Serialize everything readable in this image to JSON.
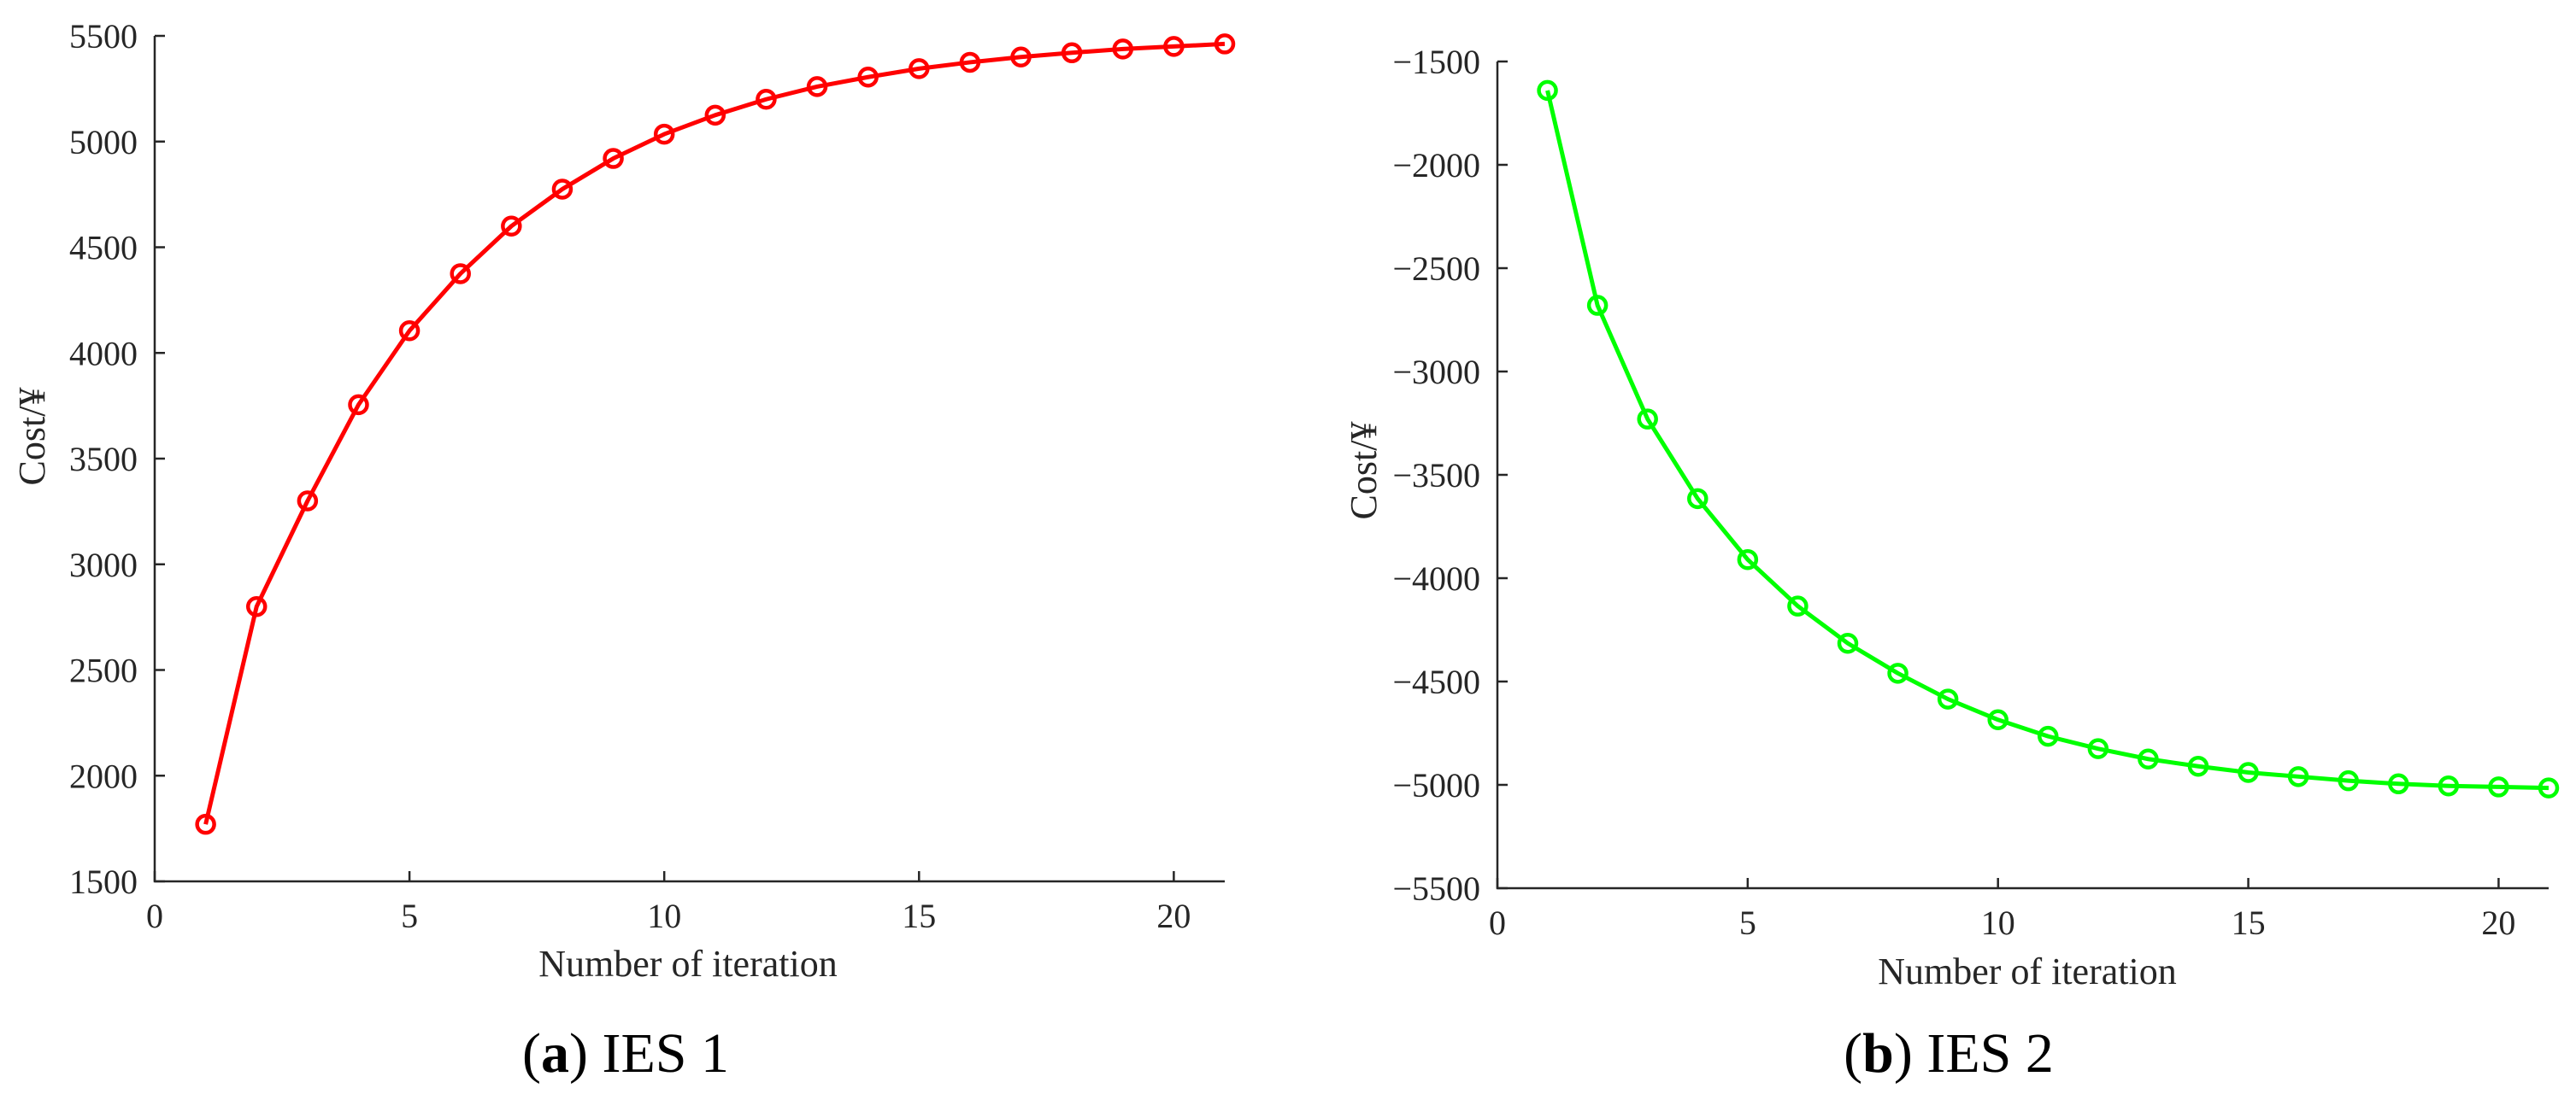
{
  "chart_data": [
    {
      "type": "line",
      "caption_letter": "a",
      "caption_text": "IES 1",
      "xlabel": "Number of iteration",
      "ylabel": "Cost/¥",
      "xlim": [
        0,
        21
      ],
      "ylim": [
        1500,
        5500
      ],
      "xticks": [
        0,
        5,
        10,
        15,
        20
      ],
      "yticks": [
        1500,
        2000,
        2500,
        3000,
        3500,
        4000,
        4500,
        5000,
        5500
      ],
      "grid": false,
      "color": "#ff0000",
      "marker": "circle",
      "series": [
        {
          "x": [
            1,
            2,
            3,
            4,
            5,
            6,
            7,
            8,
            9,
            10,
            11,
            12,
            13,
            14,
            15,
            16,
            17,
            18,
            19,
            20,
            21
          ],
          "values": [
            1770,
            2800,
            3300,
            3755,
            4105,
            4375,
            4600,
            4775,
            4920,
            5035,
            5125,
            5200,
            5260,
            5305,
            5345,
            5375,
            5400,
            5420,
            5438,
            5450,
            5462
          ]
        }
      ]
    },
    {
      "type": "line",
      "caption_letter": "b",
      "caption_text": "IES 2",
      "xlabel": "Number of iteration",
      "ylabel": "Cost/¥",
      "xlim": [
        0,
        21
      ],
      "ylim": [
        -5500,
        -1500
      ],
      "xticks": [
        0,
        5,
        10,
        15,
        20
      ],
      "yticks": [
        -5500,
        -5000,
        -4500,
        -4000,
        -3500,
        -3000,
        -2500,
        -2000,
        -1500
      ],
      "ytick_labels": [
        "−5500",
        "−5000",
        "−4500",
        "−4000",
        "−3500",
        "−3000",
        "−2500",
        "−2000",
        "−1500"
      ],
      "grid": false,
      "color": "#00ff00",
      "marker": "circle",
      "series": [
        {
          "x": [
            1,
            2,
            3,
            4,
            5,
            6,
            7,
            8,
            9,
            10,
            11,
            12,
            13,
            14,
            15,
            16,
            17,
            18,
            19,
            20,
            21
          ],
          "values": [
            -1640,
            -2680,
            -3230,
            -3615,
            -3910,
            -4135,
            -4315,
            -4460,
            -4585,
            -4685,
            -4765,
            -4825,
            -4875,
            -4910,
            -4940,
            -4960,
            -4980,
            -4995,
            -5005,
            -5010,
            -5015
          ]
        }
      ]
    }
  ]
}
